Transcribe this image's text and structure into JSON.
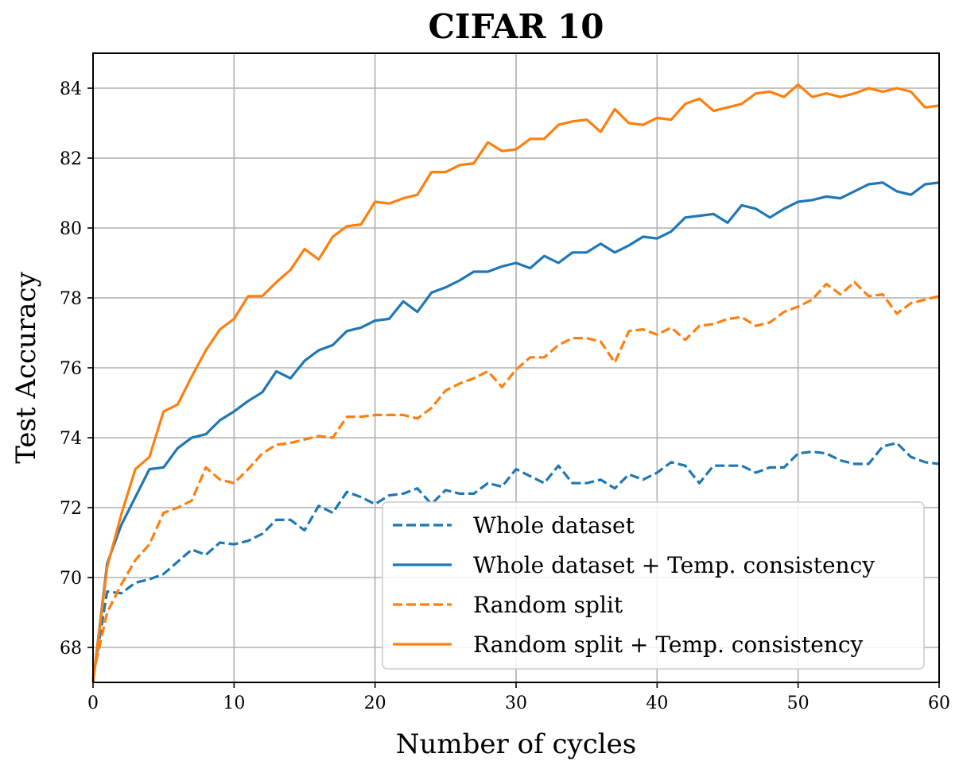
{
  "chart_data": {
    "type": "line",
    "title": "CIFAR 10",
    "xlabel": "Number of cycles",
    "ylabel": "Test Accuracy",
    "xlim": [
      0,
      60
    ],
    "ylim": [
      67,
      85
    ],
    "xticks": [
      0,
      10,
      20,
      30,
      40,
      50,
      60
    ],
    "yticks": [
      68,
      70,
      72,
      74,
      76,
      78,
      80,
      82,
      84
    ],
    "grid": true,
    "legend_position": "bottom-right",
    "x": [
      0,
      1,
      2,
      3,
      4,
      5,
      6,
      7,
      8,
      9,
      10,
      11,
      12,
      13,
      14,
      15,
      16,
      17,
      18,
      19,
      20,
      21,
      22,
      23,
      24,
      25,
      26,
      27,
      28,
      29,
      30,
      31,
      32,
      33,
      34,
      35,
      36,
      37,
      38,
      39,
      40,
      41,
      42,
      43,
      44,
      45,
      46,
      47,
      48,
      49,
      50,
      51,
      52,
      53,
      54,
      55,
      56,
      57,
      58,
      59,
      60
    ],
    "series": [
      {
        "name": "Whole dataset",
        "color": "#1f77b4",
        "style": "dashed",
        "values": [
          67.1,
          69.6,
          69.55,
          69.85,
          69.95,
          70.1,
          70.45,
          70.8,
          70.65,
          71.0,
          70.95,
          71.05,
          71.25,
          71.65,
          71.65,
          71.35,
          72.05,
          71.85,
          72.45,
          72.3,
          72.1,
          72.35,
          72.4,
          72.55,
          72.1,
          72.5,
          72.4,
          72.4,
          72.7,
          72.6,
          73.1,
          72.9,
          72.7,
          73.2,
          72.7,
          72.7,
          72.8,
          72.55,
          72.95,
          72.8,
          73.0,
          73.3,
          73.2,
          72.7,
          73.2,
          73.2,
          73.2,
          73.0,
          73.15,
          73.15,
          73.55,
          73.6,
          73.55,
          73.35,
          73.25,
          73.25,
          73.75,
          73.85,
          73.45,
          73.3,
          73.25
        ]
      },
      {
        "name": "Whole dataset + Temp. consistency",
        "color": "#1f77b4",
        "style": "solid",
        "values": [
          67.0,
          70.4,
          71.5,
          72.3,
          73.1,
          73.15,
          73.7,
          74.0,
          74.1,
          74.5,
          74.75,
          75.05,
          75.3,
          75.9,
          75.7,
          76.2,
          76.5,
          76.65,
          77.05,
          77.15,
          77.35,
          77.4,
          77.9,
          77.6,
          78.15,
          78.3,
          78.5,
          78.75,
          78.75,
          78.9,
          79.0,
          78.85,
          79.2,
          79.0,
          79.3,
          79.3,
          79.55,
          79.3,
          79.5,
          79.75,
          79.7,
          79.9,
          80.3,
          80.35,
          80.4,
          80.15,
          80.65,
          80.55,
          80.3,
          80.55,
          80.75,
          80.8,
          80.9,
          80.85,
          81.05,
          81.25,
          81.3,
          81.05,
          80.95,
          81.25,
          81.3
        ]
      },
      {
        "name": "Random split",
        "color": "#ff7f0e",
        "style": "dashed",
        "values": [
          67.2,
          69.0,
          69.8,
          70.5,
          70.95,
          71.85,
          72.0,
          72.2,
          73.15,
          72.8,
          72.7,
          73.1,
          73.55,
          73.8,
          73.85,
          73.95,
          74.05,
          74.0,
          74.6,
          74.6,
          74.65,
          74.65,
          74.65,
          74.55,
          74.85,
          75.35,
          75.55,
          75.7,
          75.9,
          75.45,
          75.95,
          76.3,
          76.3,
          76.65,
          76.85,
          76.85,
          76.75,
          76.15,
          77.05,
          77.1,
          76.95,
          77.15,
          76.8,
          77.2,
          77.25,
          77.4,
          77.45,
          77.2,
          77.3,
          77.6,
          77.75,
          77.95,
          78.4,
          78.1,
          78.45,
          78.05,
          78.1,
          77.55,
          77.85,
          77.95,
          78.05
        ]
      },
      {
        "name": "Random split + Temp. consistency",
        "color": "#ff7f0e",
        "style": "solid",
        "values": [
          67.0,
          70.3,
          71.8,
          73.1,
          73.45,
          74.75,
          74.95,
          75.75,
          76.5,
          77.1,
          77.4,
          78.05,
          78.05,
          78.45,
          78.8,
          79.4,
          79.1,
          79.75,
          80.05,
          80.1,
          80.75,
          80.7,
          80.85,
          80.95,
          81.6,
          81.6,
          81.8,
          81.85,
          82.45,
          82.2,
          82.25,
          82.55,
          82.55,
          82.95,
          83.05,
          83.1,
          82.75,
          83.4,
          83.0,
          82.95,
          83.15,
          83.1,
          83.55,
          83.7,
          83.35,
          83.45,
          83.55,
          83.85,
          83.9,
          83.75,
          84.1,
          83.75,
          83.85,
          83.75,
          83.85,
          84.0,
          83.9,
          84.0,
          83.9,
          83.45,
          83.5
        ]
      }
    ]
  }
}
